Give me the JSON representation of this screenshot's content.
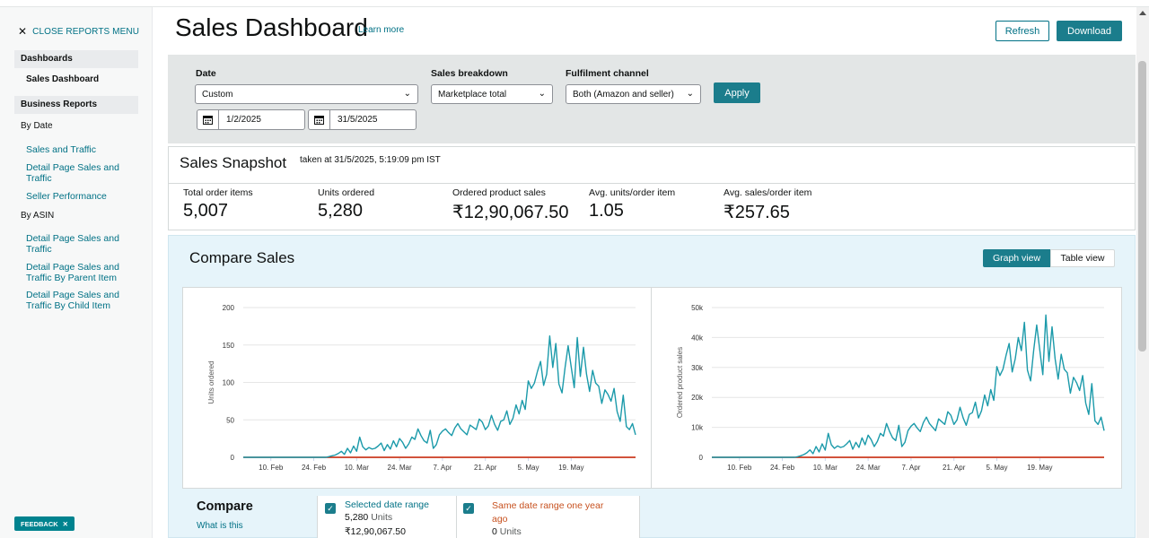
{
  "sidebar": {
    "close_label": "CLOSE REPORTS MENU",
    "dashboards_head": "Dashboards",
    "sales_dashboard": "Sales Dashboard",
    "business_head": "Business Reports",
    "by_date": "By Date",
    "date_links": [
      "Sales and Traffic",
      "Detail Page Sales and Traffic",
      "Seller Performance"
    ],
    "by_asin": "By ASIN",
    "asin_links": [
      "Detail Page Sales and Traffic",
      "Detail Page Sales and Traffic By Parent Item",
      "Detail Page Sales and Traffic By Child Item"
    ],
    "feedback": "FEEDBACK"
  },
  "header": {
    "title": "Sales Dashboard",
    "learn_more": "Learn more",
    "refresh": "Refresh",
    "download": "Download"
  },
  "filters": {
    "date_label": "Date",
    "date_value": "Custom",
    "start_date": "1/2/2025",
    "end_date": "31/5/2025",
    "breakdown_label": "Sales breakdown",
    "breakdown_value": "Marketplace total",
    "channel_label": "Fulfilment channel",
    "channel_value": "Both (Amazon and seller)",
    "apply": "Apply"
  },
  "snapshot": {
    "title": "Sales Snapshot",
    "taken": "taken at 31/5/2025, 5:19:09 pm IST",
    "metrics": [
      {
        "label": "Total order items",
        "value": "5,007"
      },
      {
        "label": "Units ordered",
        "value": "5,280"
      },
      {
        "label": "Ordered product sales",
        "value": "₹12,90,067.50"
      },
      {
        "label": "Avg. units/order item",
        "value": "1.05"
      },
      {
        "label": "Avg. sales/order item",
        "value": "₹257.65"
      }
    ]
  },
  "compare": {
    "title": "Compare Sales",
    "graph_view": "Graph view",
    "table_view": "Table view",
    "label": "Compare",
    "what_is": "What is this",
    "selected_name": "Selected date range",
    "selected_units": "5,280",
    "selected_sales": "₹12,90,067.50",
    "units_word": "Units",
    "prior_name": "Same date range one year ago",
    "prior_units": "0",
    "series_color": "#1b9aaa",
    "prior_color": "#cc2200"
  },
  "chart_data": [
    {
      "type": "line",
      "ylabel": "Units ordered",
      "ylim": [
        0,
        200
      ],
      "yticks": [
        "0",
        "50",
        "100",
        "150",
        "200"
      ],
      "x_ticks": [
        "10. Feb",
        "24. Feb",
        "10. Mar",
        "24. Mar",
        "7. Apr",
        "21. Apr",
        "5. May",
        "19. May"
      ],
      "x_start": "2025-02-01",
      "grid": true,
      "series": [
        {
          "name": "Selected date range",
          "values": [
            0,
            0,
            0,
            0,
            0,
            0,
            0,
            0,
            0,
            0,
            0,
            0,
            0,
            0,
            0,
            0,
            0,
            0,
            0,
            0,
            0,
            0,
            0,
            0,
            0,
            0,
            0,
            0,
            1,
            2,
            3,
            5,
            8,
            4,
            12,
            6,
            15,
            8,
            27,
            14,
            10,
            13,
            11,
            12,
            15,
            19,
            9,
            17,
            11,
            22,
            14,
            25,
            20,
            12,
            18,
            27,
            24,
            38,
            29,
            22,
            19,
            36,
            12,
            17,
            30,
            35,
            38,
            33,
            29,
            39,
            45,
            38,
            34,
            30,
            43,
            40,
            37,
            51,
            47,
            37,
            42,
            56,
            44,
            36,
            48,
            50,
            62,
            44,
            52,
            70,
            58,
            76,
            64,
            102,
            92,
            99,
            115,
            128,
            96,
            111,
            162,
            120,
            152,
            98,
            86,
            120,
            149,
            121,
            93,
            160,
            108,
            147,
            111,
            88,
            116,
            99,
            95,
            72,
            90,
            84,
            75,
            92,
            61,
            48,
            83,
            41,
            37,
            45,
            30
          ]
        },
        {
          "name": "Same date range one year ago",
          "values": [
            0,
            0
          ]
        }
      ]
    },
    {
      "type": "line",
      "ylabel": "Ordered product sales",
      "ylim": [
        0,
        50000
      ],
      "yticks": [
        "0",
        "10k",
        "20k",
        "30k",
        "40k",
        "50k"
      ],
      "x_ticks": [
        "10. Feb",
        "24. Feb",
        "10. Mar",
        "24. Mar",
        "7. Apr",
        "21. Apr",
        "5. May",
        "19. May"
      ],
      "x_start": "2025-02-01",
      "grid": true,
      "series": [
        {
          "name": "Selected date range",
          "values": [
            0,
            0,
            0,
            0,
            0,
            0,
            0,
            0,
            0,
            0,
            0,
            0,
            0,
            0,
            0,
            0,
            0,
            0,
            0,
            0,
            0,
            0,
            0,
            0,
            0,
            0,
            0,
            0,
            200,
            500,
            900,
            1500,
            2500,
            1200,
            3600,
            1800,
            4500,
            2400,
            8000,
            4200,
            3000,
            3800,
            3300,
            3600,
            4500,
            5600,
            2700,
            5000,
            3300,
            6500,
            4200,
            7400,
            5900,
            3600,
            5300,
            8000,
            7100,
            11300,
            8600,
            6500,
            5600,
            10700,
            3600,
            5000,
            8900,
            10400,
            11300,
            9800,
            8600,
            11600,
            13400,
            11300,
            10100,
            8900,
            12800,
            11900,
            11000,
            15200,
            14000,
            11000,
            12500,
            16700,
            13100,
            10700,
            14300,
            14900,
            18400,
            13100,
            15500,
            20800,
            17200,
            22600,
            19000,
            30300,
            27300,
            29400,
            34100,
            38000,
            28500,
            32900,
            40000,
            35600,
            45100,
            29100,
            25500,
            35600,
            44200,
            35900,
            27600,
            47500,
            32000,
            43600,
            32900,
            26100,
            34400,
            29400,
            28200,
            21400,
            26700,
            24900,
            22300,
            27300,
            18100,
            14300,
            24600,
            12200,
            11000,
            13400,
            8900
          ]
        },
        {
          "name": "Same date range one year ago",
          "values": [
            0,
            0
          ]
        }
      ]
    }
  ]
}
